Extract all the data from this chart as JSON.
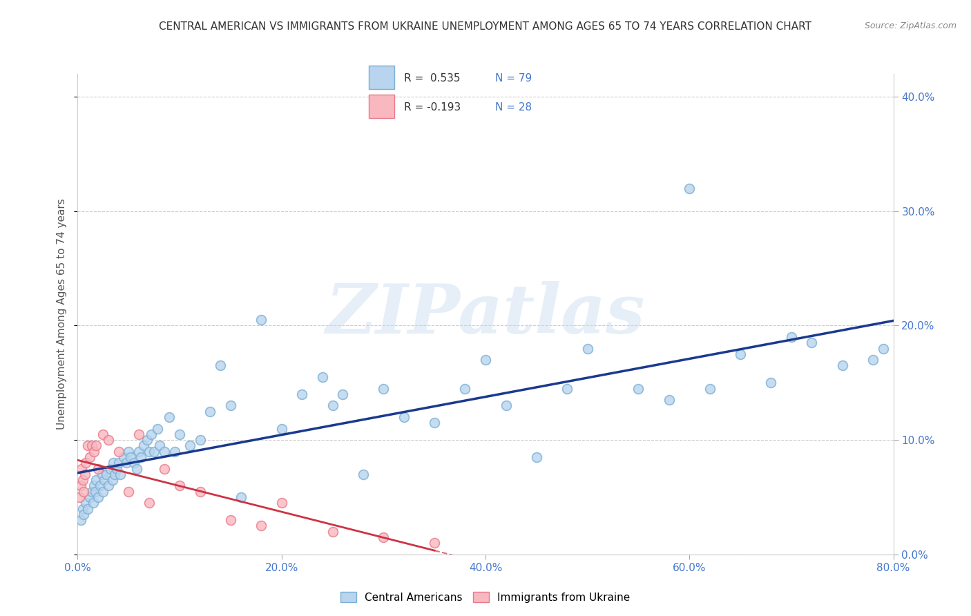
{
  "title": "CENTRAL AMERICAN VS IMMIGRANTS FROM UKRAINE UNEMPLOYMENT AMONG AGES 65 TO 74 YEARS CORRELATION CHART",
  "source": "Source: ZipAtlas.com",
  "ylabel": "Unemployment Among Ages 65 to 74 years",
  "r_blue": 0.535,
  "n_blue": 79,
  "r_pink": -0.193,
  "n_pink": 28,
  "blue_face": "#b8d4ee",
  "blue_edge": "#7aafd4",
  "pink_face": "#f9b8c0",
  "pink_edge": "#e87a8a",
  "blue_line_color": "#1a3a8f",
  "pink_line_color": "#cc3344",
  "blue_scatter_x": [
    0.3,
    0.5,
    0.6,
    0.8,
    1.0,
    1.2,
    1.4,
    1.5,
    1.6,
    1.7,
    1.8,
    2.0,
    2.2,
    2.4,
    2.5,
    2.6,
    2.8,
    3.0,
    3.2,
    3.4,
    3.5,
    3.6,
    3.8,
    4.0,
    4.2,
    4.5,
    4.8,
    5.0,
    5.2,
    5.5,
    5.8,
    6.0,
    6.2,
    6.5,
    6.8,
    7.0,
    7.2,
    7.5,
    7.8,
    8.0,
    8.5,
    9.0,
    9.5,
    10.0,
    11.0,
    12.0,
    13.0,
    14.0,
    15.0,
    16.0,
    18.0,
    20.0,
    22.0,
    24.0,
    25.0,
    26.0,
    28.0,
    30.0,
    32.0,
    35.0,
    38.0,
    40.0,
    42.0,
    45.0,
    48.0,
    50.0,
    55.0,
    58.0,
    60.0,
    62.0,
    65.0,
    68.0,
    70.0,
    72.0,
    75.0,
    78.0,
    79.0
  ],
  "blue_scatter_y": [
    3.0,
    4.0,
    3.5,
    4.5,
    4.0,
    5.0,
    5.5,
    4.5,
    6.0,
    5.5,
    6.5,
    5.0,
    6.0,
    7.0,
    5.5,
    6.5,
    7.0,
    6.0,
    7.5,
    6.5,
    8.0,
    7.0,
    7.5,
    8.0,
    7.0,
    8.5,
    8.0,
    9.0,
    8.5,
    8.0,
    7.5,
    9.0,
    8.5,
    9.5,
    10.0,
    9.0,
    10.5,
    9.0,
    11.0,
    9.5,
    9.0,
    12.0,
    9.0,
    10.5,
    9.5,
    10.0,
    12.5,
    16.5,
    13.0,
    5.0,
    20.5,
    11.0,
    14.0,
    15.5,
    13.0,
    14.0,
    7.0,
    14.5,
    12.0,
    11.5,
    14.5,
    17.0,
    13.0,
    8.5,
    14.5,
    18.0,
    14.5,
    13.5,
    32.0,
    14.5,
    17.5,
    15.0,
    19.0,
    18.5,
    16.5,
    17.0,
    18.0
  ],
  "pink_scatter_x": [
    0.2,
    0.3,
    0.4,
    0.5,
    0.6,
    0.7,
    0.8,
    1.0,
    1.2,
    1.4,
    1.6,
    1.8,
    2.0,
    2.5,
    3.0,
    4.0,
    5.0,
    6.0,
    7.0,
    8.5,
    10.0,
    12.0,
    15.0,
    18.0,
    20.0,
    25.0,
    30.0,
    35.0
  ],
  "pink_scatter_y": [
    5.0,
    6.0,
    7.5,
    6.5,
    5.5,
    7.0,
    8.0,
    9.5,
    8.5,
    9.5,
    9.0,
    9.5,
    7.5,
    10.5,
    10.0,
    9.0,
    5.5,
    10.5,
    4.5,
    7.5,
    6.0,
    5.5,
    3.0,
    2.5,
    4.5,
    2.0,
    1.5,
    1.0
  ],
  "xlim": [
    0,
    80
  ],
  "ylim": [
    0,
    42
  ],
  "xtick_vals": [
    0,
    20,
    40,
    60,
    80
  ],
  "ytick_vals": [
    0,
    10,
    20,
    30,
    40
  ],
  "watermark_text": "ZIPatlas",
  "background_color": "#ffffff",
  "grid_color": "#cccccc",
  "tick_label_color": "#4477cc",
  "title_color": "#333333",
  "source_color": "#888888",
  "ylabel_color": "#555555"
}
